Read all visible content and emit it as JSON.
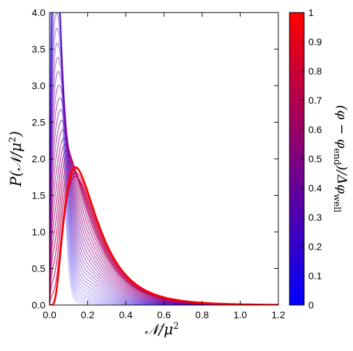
{
  "chart_data": {
    "type": "line",
    "xlabel_main": "𝒩/μ",
    "xlabel_sup": "2",
    "ylabel_prefix": "P(𝒩/μ",
    "ylabel_sup": "2",
    "ylabel_suffix": ")",
    "xlim": [
      0.0,
      1.2
    ],
    "ylim": [
      0.0,
      4.0
    ],
    "xticks": [
      0.0,
      0.2,
      0.4,
      0.6,
      0.8,
      1.0,
      1.2
    ],
    "xtick_labels": [
      "0.0",
      "0.2",
      "0.4",
      "0.6",
      "0.8",
      "1.0",
      "1.2"
    ],
    "yticks": [
      0.0,
      0.5,
      1.0,
      1.5,
      2.0,
      2.5,
      3.0,
      3.5,
      4.0
    ],
    "ytick_labels": [
      "0.0",
      "0.5",
      "1.0",
      "1.5",
      "2.0",
      "2.5",
      "3.0",
      "3.5",
      "4.0"
    ],
    "colorbar": {
      "min": 0,
      "max": 1,
      "ticks": [
        0,
        0.1,
        0.2,
        0.3,
        0.4,
        0.5,
        0.6,
        0.7,
        0.8,
        0.9,
        1
      ],
      "tick_labels": [
        "0",
        "0.1",
        "0.2",
        "0.3",
        "0.4",
        "0.5",
        "0.6",
        "0.7",
        "0.8",
        "0.9",
        "1"
      ],
      "color_low": "#0000ff",
      "color_high": "#ff0000",
      "label_parts": [
        "(φ − φ",
        "end",
        ")/Δφ",
        "well"
      ]
    },
    "series_count": 40,
    "series_parameter_range": [
      0,
      1
    ],
    "late_curve_peak": {
      "x": 0.155,
      "y": 1.84
    },
    "early_curve_peak_y": 4.0,
    "grid": false,
    "legend": "none"
  }
}
